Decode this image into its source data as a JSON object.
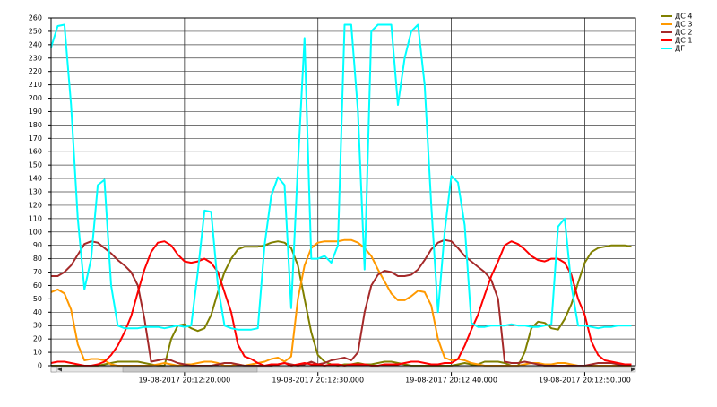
{
  "chart_data": {
    "type": "line",
    "x": [
      10,
      10.5,
      11,
      11.5,
      12,
      12.5,
      13,
      13.5,
      14,
      14.5,
      15,
      15.5,
      16,
      16.5,
      17,
      17.5,
      18,
      18.5,
      19,
      19.5,
      20,
      20.5,
      21,
      21.5,
      22,
      22.5,
      23,
      23.5,
      24,
      24.5,
      25,
      25.5,
      26,
      26.5,
      27,
      27.5,
      28,
      28.5,
      29,
      29.5,
      30,
      30.5,
      31,
      31.5,
      32,
      32.5,
      33,
      33.5,
      34,
      34.5,
      35,
      35.5,
      36,
      36.5,
      37,
      37.5,
      38,
      38.5,
      39,
      39.5,
      40,
      40.5,
      41,
      41.5,
      42,
      42.5,
      43,
      43.5,
      44,
      44.5,
      45,
      45.5,
      46,
      46.5,
      47,
      47.5,
      48,
      48.5,
      49,
      49.5,
      50,
      50.5,
      51,
      51.5,
      52,
      52.5,
      53,
      53.5
    ],
    "series": [
      {
        "name": "ДС 4",
        "color": "#808000",
        "values": [
          0,
          0,
          0,
          0,
          0,
          0,
          0,
          0,
          1,
          2,
          3,
          3,
          3,
          3,
          2,
          1,
          0,
          0,
          20,
          30,
          31,
          28,
          26,
          28,
          38,
          55,
          70,
          80,
          87,
          89,
          89,
          89,
          90,
          92,
          93,
          92,
          88,
          75,
          50,
          25,
          8,
          3,
          1,
          0,
          1,
          1,
          2,
          1,
          1,
          2,
          3,
          3,
          2,
          1,
          0,
          0,
          0,
          0,
          0,
          0,
          0,
          1,
          2,
          1,
          1,
          3,
          3,
          3,
          2,
          0,
          0,
          10,
          28,
          33,
          32,
          28,
          27,
          35,
          46,
          62,
          77,
          85,
          88,
          89,
          90,
          90,
          90,
          89
        ]
      },
      {
        "name": "ДС 3",
        "color": "#ff9900",
        "values": [
          55,
          57,
          54,
          42,
          16,
          4,
          5,
          5,
          4,
          1,
          0,
          0,
          0,
          0,
          0,
          0,
          1,
          2,
          1,
          0,
          1,
          1,
          2,
          3,
          3,
          2,
          0,
          0,
          1,
          0,
          1,
          2,
          3,
          5,
          6,
          3,
          7,
          50,
          75,
          88,
          92,
          93,
          93,
          93,
          94,
          94,
          92,
          88,
          82,
          72,
          63,
          54,
          49,
          49,
          52,
          56,
          55,
          45,
          20,
          6,
          4,
          5,
          4,
          2,
          1,
          0,
          0,
          0,
          0,
          0,
          0,
          1,
          2,
          2,
          1,
          1,
          2,
          2,
          1,
          0,
          0,
          0,
          0,
          0,
          0,
          0,
          0,
          0
        ]
      },
      {
        "name": "ДС 2",
        "color": "#a52a2a",
        "values": [
          67,
          67,
          70,
          75,
          83,
          91,
          93,
          92,
          88,
          84,
          79,
          75,
          70,
          60,
          35,
          3,
          4,
          5,
          4,
          2,
          1,
          0,
          0,
          0,
          0,
          1,
          2,
          2,
          1,
          0,
          0,
          0,
          0,
          0,
          1,
          2,
          1,
          0,
          1,
          3,
          1,
          2,
          4,
          5,
          6,
          4,
          10,
          40,
          60,
          68,
          71,
          70,
          67,
          67,
          68,
          72,
          79,
          87,
          92,
          94,
          93,
          88,
          82,
          78,
          74,
          70,
          64,
          50,
          3,
          2,
          2,
          3,
          2,
          1,
          0,
          0,
          0,
          0,
          0,
          0,
          0,
          1,
          2,
          2,
          2,
          1,
          1,
          1
        ]
      },
      {
        "name": "ДС 1",
        "color": "#ff0000",
        "values": [
          2,
          3,
          3,
          2,
          1,
          0,
          0,
          1,
          3,
          8,
          15,
          25,
          37,
          55,
          72,
          85,
          92,
          93,
          90,
          83,
          78,
          77,
          78,
          80,
          77,
          70,
          55,
          40,
          16,
          7,
          5,
          2,
          0,
          1,
          1,
          2,
          0,
          1,
          2,
          1,
          1,
          0,
          1,
          1,
          0,
          1,
          1,
          1,
          0,
          0,
          1,
          1,
          1,
          2,
          3,
          3,
          2,
          1,
          1,
          2,
          2,
          5,
          15,
          27,
          38,
          53,
          67,
          78,
          90,
          93,
          91,
          87,
          82,
          79,
          78,
          80,
          80,
          77,
          68,
          50,
          38,
          18,
          8,
          4,
          3,
          2,
          1,
          1
        ]
      },
      {
        "name": "ДГ",
        "color": "#00ffff",
        "values": [
          238,
          254,
          255,
          195,
          110,
          57,
          80,
          135,
          139,
          60,
          30,
          28,
          28,
          28,
          29,
          29,
          29,
          28,
          29,
          30,
          29,
          30,
          70,
          116,
          115,
          60,
          30,
          28,
          27,
          27,
          27,
          28,
          90,
          127,
          141,
          135,
          43,
          150,
          245,
          80,
          80,
          82,
          77,
          90,
          255,
          255,
          190,
          72,
          250,
          255,
          255,
          255,
          195,
          230,
          250,
          255,
          210,
          120,
          40,
          100,
          142,
          137,
          105,
          32,
          29,
          29,
          30,
          30,
          30,
          31,
          30,
          30,
          29,
          29,
          30,
          31,
          104,
          110,
          60,
          30,
          30,
          29,
          28,
          29,
          29,
          30,
          30,
          30
        ]
      }
    ],
    "xlim": [
      10,
      53.8
    ],
    "xticks": [
      {
        "value": 20,
        "label": "19-08-2017 20:12:20.000"
      },
      {
        "value": 30,
        "label": "19-08-2017 20:12:30.000"
      },
      {
        "value": 40,
        "label": "19-08-2017 20:12:40.000"
      },
      {
        "value": 50,
        "label": "19-08-2017 20:12:50.000"
      }
    ],
    "ylim": [
      0,
      260
    ],
    "yticks": [
      0,
      10,
      20,
      30,
      40,
      50,
      60,
      70,
      80,
      90,
      100,
      110,
      120,
      130,
      140,
      150,
      160,
      170,
      180,
      190,
      200,
      210,
      220,
      230,
      240,
      250,
      260
    ],
    "grid": true,
    "cursor": 44.7,
    "legend": "top-right"
  }
}
